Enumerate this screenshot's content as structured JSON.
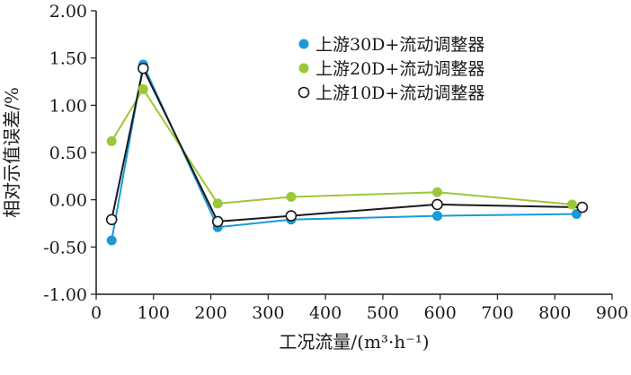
{
  "chart_data": {
    "type": "line",
    "xlabel": "工况流量/(m³·h⁻¹)",
    "ylabel": "相对示值误差/%",
    "xlim": [
      0,
      900
    ],
    "ylim": [
      -1.0,
      2.0
    ],
    "x_ticks": [
      "0",
      "100",
      "200",
      "300",
      "400",
      "500",
      "600",
      "700",
      "800",
      "900"
    ],
    "y_ticks": [
      "-1.00",
      "-0.50",
      "0.00",
      "0.50",
      "1.00",
      "1.50",
      "2.00"
    ],
    "grid": false,
    "legend_position": "top-right",
    "series": [
      {
        "name": "上游30D+流动调整器",
        "color": "#1a9ad6",
        "marker": "filled-circle",
        "points": [
          [
            27,
            -0.43
          ],
          [
            82,
            1.43
          ],
          [
            212,
            -0.29
          ],
          [
            340,
            -0.21
          ],
          [
            595,
            -0.17
          ],
          [
            838,
            -0.15
          ]
        ]
      },
      {
        "name": "上游20D+流动调整器",
        "color": "#9cc73a",
        "marker": "filled-circle",
        "points": [
          [
            27,
            0.62
          ],
          [
            82,
            1.17
          ],
          [
            212,
            -0.04
          ],
          [
            340,
            0.03
          ],
          [
            595,
            0.08
          ],
          [
            830,
            -0.05
          ]
        ]
      },
      {
        "name": "上游10D+流动调整器",
        "color": "#1a1a1a",
        "marker": "open-circle",
        "points": [
          [
            27,
            -0.21
          ],
          [
            82,
            1.39
          ],
          [
            212,
            -0.23
          ],
          [
            340,
            -0.17
          ],
          [
            595,
            -0.05
          ],
          [
            848,
            -0.08
          ]
        ]
      }
    ]
  }
}
